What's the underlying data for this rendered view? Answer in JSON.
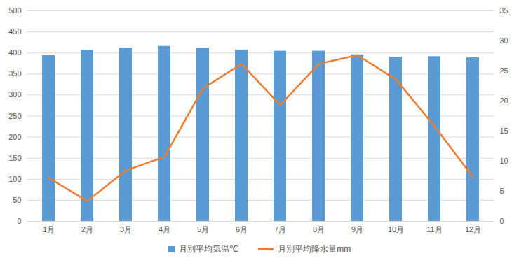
{
  "chart_data": {
    "type": "combo",
    "categories": [
      "1月",
      "2月",
      "3月",
      "4月",
      "5月",
      "6月",
      "7月",
      "8月",
      "9月",
      "10月",
      "11月",
      "12月"
    ],
    "series": [
      {
        "name": "月別平均気温℃",
        "type": "bar",
        "axis": "y2",
        "color": "#5b9bd5",
        "values": [
          27.6,
          28.4,
          28.8,
          29.1,
          28.8,
          28.5,
          28.3,
          28.3,
          27.7,
          27.3,
          27.4,
          27.2
        ]
      },
      {
        "name": "月別平均降水量mm",
        "type": "line",
        "color": "#ed7d31",
        "values": [
          103,
          48,
          121,
          153,
          316,
          374,
          276,
          374,
          395,
          337,
          226,
          105
        ]
      }
    ],
    "ylim": [
      0,
      500
    ],
    "yticks": [
      0,
      50,
      100,
      150,
      200,
      250,
      300,
      350,
      400,
      450,
      500
    ],
    "y2lim": [
      0,
      35
    ],
    "y2ticks": [
      0,
      5,
      10,
      15,
      20,
      25,
      30,
      35
    ],
    "grid": true,
    "legend": "bottom"
  }
}
